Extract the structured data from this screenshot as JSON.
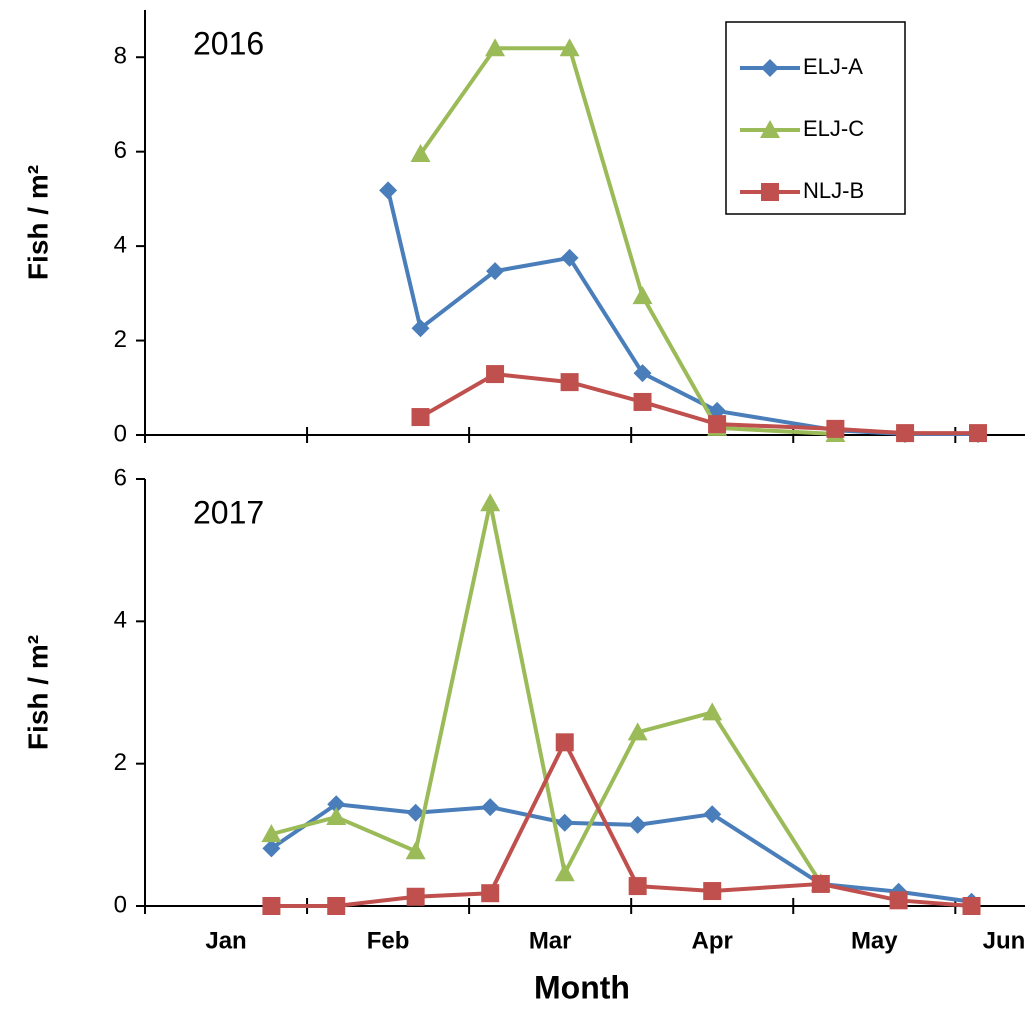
{
  "chart_data": [
    {
      "type": "line",
      "annotation": "2016",
      "y_label": "Fish / m²",
      "x": [
        1.5,
        1.7,
        2.16,
        2.62,
        3.07,
        3.53,
        4.26,
        4.69,
        5.14
      ],
      "xlim": [
        0,
        5.43
      ],
      "xtick_marks": [
        0,
        1,
        2,
        3,
        4,
        5
      ],
      "ylim": [
        0,
        9
      ],
      "yticks": [
        0,
        2,
        4,
        6,
        8
      ],
      "legend": "upper right",
      "series": [
        {
          "name": "ELJ-A",
          "color": "#4a7ebb",
          "marker": "diamond",
          "values": [
            5.18,
            2.26,
            3.47,
            3.75,
            1.31,
            0.51,
            0.1,
            0.02,
            0.02
          ]
        },
        {
          "name": "ELJ-C",
          "color": "#9bbb59",
          "marker": "triangle",
          "values": [
            null,
            5.95,
            8.19,
            8.19,
            2.94,
            0.15,
            0.02,
            null,
            null
          ]
        },
        {
          "name": "NLJ-B",
          "color": "#c0504d",
          "marker": "square",
          "values": [
            null,
            0.38,
            1.29,
            1.12,
            0.7,
            0.23,
            0.13,
            0.04,
            0.04
          ]
        }
      ]
    },
    {
      "type": "line",
      "annotation": "2017",
      "y_label": "Fish / m²",
      "x_label": "Month",
      "x": [
        0.78,
        1.18,
        1.67,
        2.13,
        2.59,
        3.04,
        3.5,
        4.17,
        4.65,
        5.1
      ],
      "xlim": [
        0,
        5.43
      ],
      "xtick_marks": [
        0,
        1,
        2,
        3,
        4,
        5
      ],
      "xticks": [
        {
          "value": 0.5,
          "label": "Jan"
        },
        {
          "value": 1.5,
          "label": "Feb"
        },
        {
          "value": 2.5,
          "label": "Mar"
        },
        {
          "value": 3.5,
          "label": "Apr"
        },
        {
          "value": 4.5,
          "label": "May"
        },
        {
          "value": 5.3,
          "label": "Jun"
        }
      ],
      "ylim": [
        0,
        6
      ],
      "yticks": [
        0,
        2,
        4,
        6
      ],
      "series": [
        {
          "color": "#4a7ebb",
          "marker": "diamond",
          "values": [
            0.81,
            1.43,
            1.31,
            1.39,
            1.17,
            1.14,
            1.29,
            0.31,
            0.2,
            0.06
          ]
        },
        {
          "color": "#9bbb59",
          "marker": "triangle",
          "values": [
            1.01,
            1.25,
            0.77,
            5.66,
            0.46,
            2.44,
            2.72,
            0.32,
            null,
            null
          ]
        },
        {
          "color": "#c0504d",
          "marker": "square",
          "values": [
            0,
            0,
            0.13,
            0.18,
            2.3,
            0.28,
            0.21,
            0.31,
            0.08,
            0
          ]
        }
      ]
    }
  ]
}
